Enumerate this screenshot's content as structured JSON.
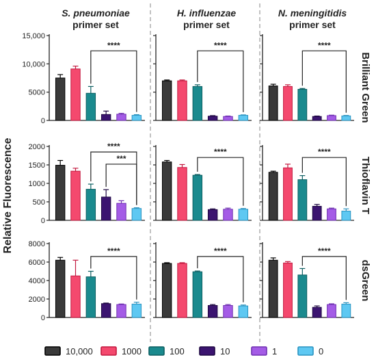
{
  "chart_data": {
    "type": "bar",
    "ylabel": "Relative Fluorescence",
    "columns": [
      {
        "title_italic": "S. pneumoniae",
        "title": "primer set"
      },
      {
        "title_italic": "H. influenzae",
        "title": "primer set"
      },
      {
        "title_italic": "N. meningitidis",
        "title": "primer set"
      }
    ],
    "rows": [
      {
        "label": "Brilliant Green",
        "ylim": [
          0,
          15000
        ],
        "ticks": [
          0,
          5000,
          10000,
          15000
        ],
        "tick_labels": [
          "0",
          "5000",
          "10,000",
          "15,000"
        ]
      },
      {
        "label": "Thioflavin T",
        "ylim": [
          0,
          2000
        ],
        "ticks": [
          0,
          500,
          1000,
          1500,
          2000
        ],
        "tick_labels": [
          "0",
          "500",
          "1000",
          "1500",
          "2000"
        ]
      },
      {
        "label": "dsGreen",
        "ylim": [
          0,
          8000
        ],
        "ticks": [
          0,
          2000,
          4000,
          6000,
          8000
        ],
        "tick_labels": [
          "0",
          "2000",
          "4000",
          "6000",
          "8000"
        ]
      }
    ],
    "series": [
      {
        "name": "10,000",
        "color": "#3a3a3a",
        "edge": "#000000"
      },
      {
        "name": "1000",
        "color": "#f4496e",
        "edge": "#c2183e"
      },
      {
        "name": "100",
        "color": "#1a8a8e",
        "edge": "#0c5e61"
      },
      {
        "name": "10",
        "color": "#3b1470",
        "edge": "#1e0742"
      },
      {
        "name": "1",
        "color": "#a45ce6",
        "edge": "#6e2fb0"
      },
      {
        "name": "0",
        "color": "#5ec8f2",
        "edge": "#2a93c0"
      }
    ],
    "panels": [
      [
        {
          "values": [
            7500,
            9100,
            4800,
            1050,
            1100,
            900
          ],
          "errors": [
            600,
            500,
            1200,
            600,
            150,
            120
          ],
          "sig": [
            {
              "from": 2,
              "to": 5,
              "label": "****",
              "y": 12300
            }
          ]
        },
        {
          "values": [
            7000,
            7000,
            6000,
            750,
            700,
            900
          ],
          "errors": [
            150,
            150,
            300,
            100,
            80,
            80
          ],
          "sig": [
            {
              "from": 2,
              "to": 5,
              "label": "****",
              "y": 12300
            }
          ]
        },
        {
          "values": [
            6100,
            6000,
            5500,
            700,
            850,
            800
          ],
          "errors": [
            300,
            300,
            150,
            80,
            80,
            80
          ],
          "sig": [
            {
              "from": 2,
              "to": 5,
              "label": "****",
              "y": 12300
            }
          ]
        }
      ],
      [
        {
          "values": [
            1490,
            1330,
            840,
            630,
            460,
            320
          ],
          "errors": [
            130,
            80,
            140,
            200,
            70,
            20
          ],
          "sig": [
            {
              "from": 2,
              "to": 5,
              "label": "****",
              "y": 1850
            },
            {
              "from": 3,
              "to": 5,
              "label": "***",
              "y": 1520
            }
          ]
        },
        {
          "values": [
            1580,
            1430,
            1220,
            290,
            300,
            300
          ],
          "errors": [
            40,
            80,
            20,
            20,
            30,
            20
          ],
          "sig": [
            {
              "from": 2,
              "to": 5,
              "label": "****",
              "y": 1700
            }
          ]
        },
        {
          "values": [
            1300,
            1420,
            1100,
            380,
            310,
            250
          ],
          "errors": [
            30,
            100,
            110,
            50,
            20,
            60
          ],
          "sig": [
            {
              "from": 2,
              "to": 5,
              "label": "****",
              "y": 1700
            }
          ]
        }
      ],
      [
        {
          "values": [
            6200,
            4500,
            4400,
            1500,
            1400,
            1450
          ],
          "errors": [
            300,
            1700,
            600,
            60,
            60,
            200
          ],
          "sig": [
            {
              "from": 2,
              "to": 5,
              "label": "****",
              "y": 6600
            }
          ]
        },
        {
          "values": [
            5850,
            5850,
            4950,
            1300,
            1300,
            1250
          ],
          "errors": [
            80,
            80,
            80,
            100,
            100,
            100
          ],
          "sig": [
            {
              "from": 2,
              "to": 5,
              "label": "****",
              "y": 6600
            }
          ]
        },
        {
          "values": [
            6200,
            5900,
            4600,
            1100,
            1400,
            1450
          ],
          "errors": [
            250,
            150,
            700,
            150,
            80,
            150
          ],
          "sig": [
            {
              "from": 2,
              "to": 5,
              "label": "****",
              "y": 6600
            }
          ]
        }
      ]
    ]
  }
}
